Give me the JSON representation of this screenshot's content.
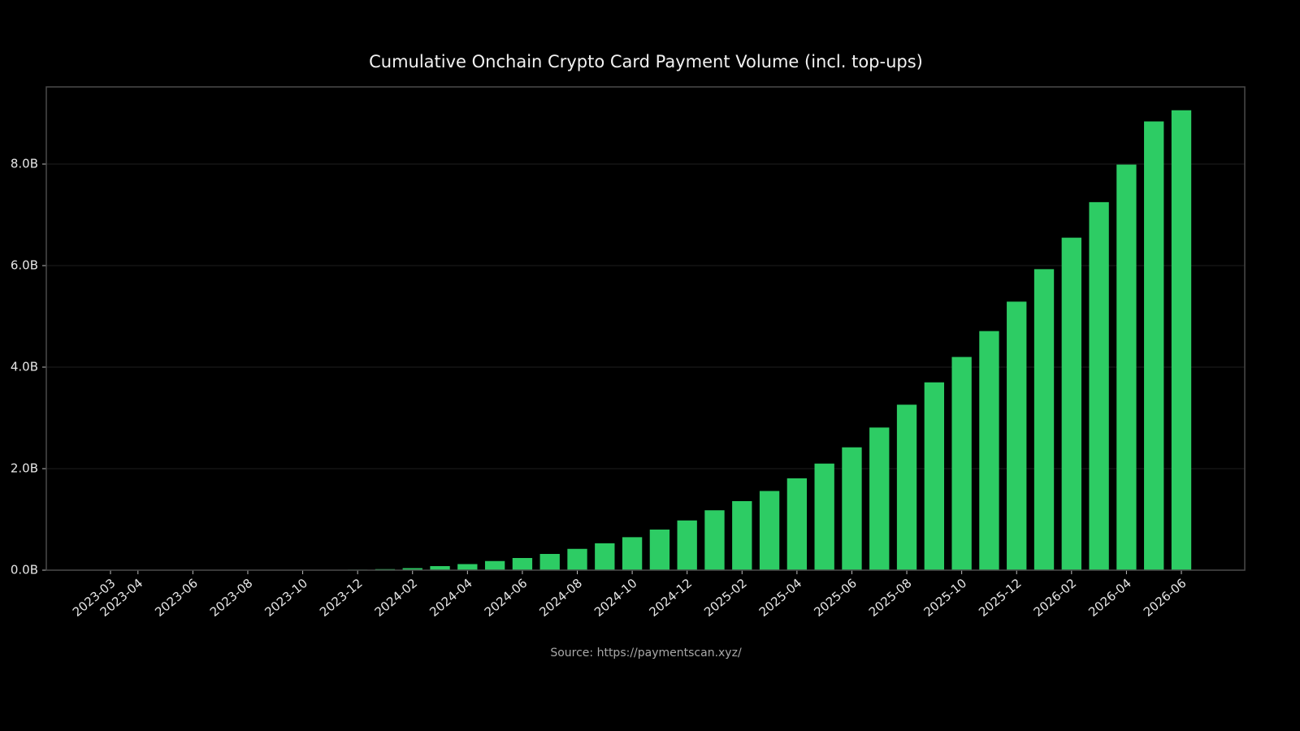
{
  "chart_data": {
    "type": "bar",
    "title": "Cumulative Onchain Crypto Card Payment Volume (incl. top-ups)",
    "source": "Source: https://paymentscan.xyz/",
    "categories": [
      "2023-03",
      "2023-04",
      null,
      "2023-06",
      null,
      "2023-08",
      null,
      "2023-10",
      null,
      "2023-12",
      null,
      "2024-02",
      null,
      "2024-04",
      null,
      "2024-06",
      null,
      "2024-08",
      null,
      "2024-10",
      null,
      "2024-12",
      null,
      "2025-02",
      null,
      "2025-04",
      null,
      "2025-06",
      null,
      "2025-08",
      null,
      "2025-10",
      null,
      "2025-12",
      null,
      "2026-02",
      null,
      "2026-04",
      null,
      "2026-06"
    ],
    "values": [
      0,
      0,
      0,
      0,
      0,
      0,
      0,
      0,
      0,
      0.01,
      0.02,
      0.04,
      0.08,
      0.12,
      0.18,
      0.24,
      0.32,
      0.42,
      0.53,
      0.65,
      0.8,
      0.98,
      1.18,
      1.36,
      1.56,
      1.81,
      2.1,
      2.42,
      2.81,
      3.26,
      3.7,
      4.2,
      4.71,
      5.29,
      5.93,
      6.55,
      7.25,
      7.99,
      8.84,
      9.06
    ],
    "color": "#2dcc64",
    "ylim": [
      0,
      9.52
    ],
    "yticks": [
      {
        "value": 0,
        "label": "0.0B"
      },
      {
        "value": 2,
        "label": "2.0B"
      },
      {
        "value": 4,
        "label": "4.0B"
      },
      {
        "value": 6,
        "label": "6.0B"
      },
      {
        "value": 8,
        "label": "8.0B"
      }
    ],
    "grid": true
  }
}
